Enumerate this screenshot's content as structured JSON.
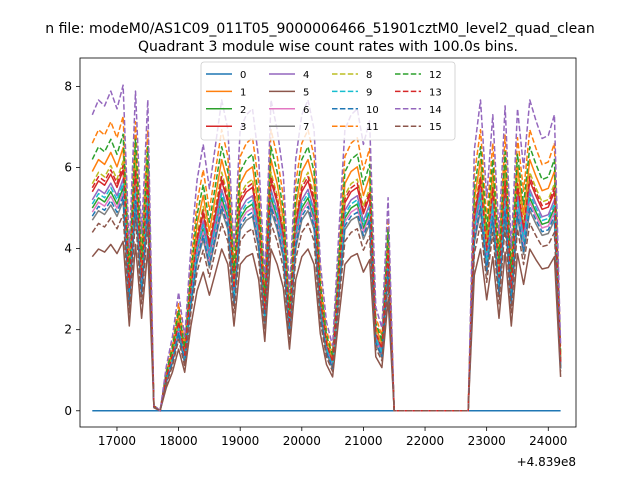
{
  "figure": {
    "suptitle": "n file: modeM0/AS1C09_011T05_9000006466_51901cztM0_level2_quad_clean",
    "title": "Quadrant 3 module wise count rates with 100.0s bins.",
    "offset_text": "+4.839e8"
  },
  "chart_data": {
    "type": "line",
    "title": "Quadrant 3 module wise count rates with 100.0s bins.",
    "xlabel": "",
    "ylabel": "",
    "xlim": [
      16400,
      24450
    ],
    "ylim": [
      -0.4,
      8.7
    ],
    "x_offset": 483900000,
    "xticks": [
      17000,
      18000,
      19000,
      20000,
      21000,
      22000,
      23000,
      24000
    ],
    "yticks": [
      0,
      2,
      4,
      6,
      8
    ],
    "legend": "top-center",
    "grid": false,
    "x": [
      16600,
      16700,
      16800,
      16900,
      17000,
      17100,
      17200,
      17300,
      17400,
      17500,
      17600,
      17700,
      17800,
      17900,
      18000,
      18100,
      18200,
      18300,
      18400,
      18500,
      18600,
      18700,
      18800,
      18900,
      19000,
      19100,
      19200,
      19300,
      19400,
      19500,
      19600,
      19700,
      19800,
      19900,
      20000,
      20100,
      20200,
      20300,
      20400,
      20500,
      20600,
      20700,
      20800,
      20900,
      21000,
      21100,
      21200,
      21300,
      21400,
      21500,
      21600,
      21700,
      21800,
      21900,
      22000,
      22100,
      22200,
      22300,
      22400,
      22500,
      22600,
      22700,
      22800,
      22900,
      23000,
      23100,
      23200,
      23300,
      23400,
      23500,
      23600,
      23700,
      23800,
      23900,
      24000,
      24100,
      24200
    ],
    "base": [
      1.0,
      1.05,
      1.03,
      1.08,
      1.02,
      1.1,
      0.55,
      1.08,
      0.6,
      1.05,
      0.02,
      0.0,
      0.15,
      0.25,
      0.4,
      0.25,
      0.55,
      0.78,
      0.9,
      0.75,
      0.9,
      1.05,
      0.95,
      0.55,
      0.95,
      1.0,
      1.02,
      0.85,
      0.45,
      1.05,
      0.95,
      0.8,
      0.4,
      0.85,
      1.0,
      1.05,
      0.95,
      0.5,
      0.3,
      0.22,
      0.6,
      0.95,
      1.0,
      1.02,
      0.9,
      0.98,
      0.35,
      0.28,
      0.72,
      0.0,
      0.0,
      0.0,
      0.0,
      0.0,
      0.0,
      0.0,
      0.0,
      0.0,
      0.0,
      0.0,
      0.0,
      0.0,
      0.88,
      1.05,
      0.72,
      1.0,
      0.6,
      1.03,
      0.55,
      1.02,
      0.82,
      1.05,
      0.98,
      0.92,
      0.93,
      1.0,
      0.22
    ],
    "series": [
      {
        "name": "0",
        "color": "#1f77b4",
        "dash": "solid",
        "scale": 0.0
      },
      {
        "name": "1",
        "color": "#ff7f0e",
        "dash": "solid",
        "scale": 5.9
      },
      {
        "name": "2",
        "color": "#2ca02c",
        "dash": "solid",
        "scale": 5.0
      },
      {
        "name": "3",
        "color": "#d62728",
        "dash": "solid",
        "scale": 5.4
      },
      {
        "name": "4",
        "color": "#9467bd",
        "dash": "solid",
        "scale": 5.2
      },
      {
        "name": "5",
        "color": "#8c564b",
        "dash": "solid",
        "scale": 3.8
      },
      {
        "name": "6",
        "color": "#e377c2",
        "dash": "solid",
        "scale": 4.9
      },
      {
        "name": "7",
        "color": "#7f7f7f",
        "dash": "solid",
        "scale": 4.7
      },
      {
        "name": "8",
        "color": "#bcbd22",
        "dash": "dashed",
        "scale": 5.6
      },
      {
        "name": "9",
        "color": "#17becf",
        "dash": "dashed",
        "scale": 5.1
      },
      {
        "name": "10",
        "color": "#1f77b4",
        "dash": "dashed",
        "scale": 4.8
      },
      {
        "name": "11",
        "color": "#ff7f0e",
        "dash": "dashed",
        "scale": 6.6
      },
      {
        "name": "12",
        "color": "#2ca02c",
        "dash": "dashed",
        "scale": 6.2
      },
      {
        "name": "13",
        "color": "#d62728",
        "dash": "dashed",
        "scale": 5.5
      },
      {
        "name": "14",
        "color": "#9467bd",
        "dash": "dashed",
        "scale": 7.3
      },
      {
        "name": "15",
        "color": "#8c564b",
        "dash": "dashed",
        "scale": 4.4
      }
    ]
  }
}
